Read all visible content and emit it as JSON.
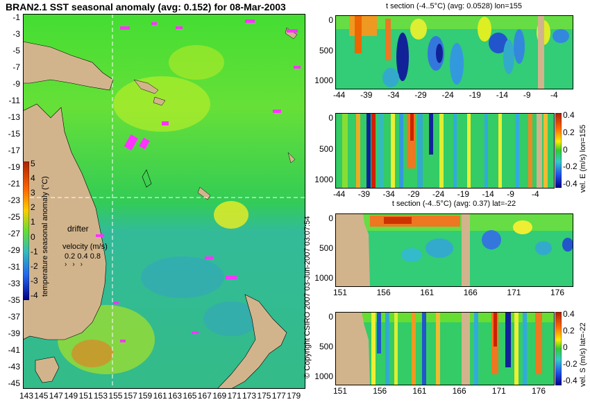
{
  "main_title": "BRAN2.1 SST seasonal anomaly (avg: 0.152) for 08-Mar-2003",
  "map": {
    "lat_labels": [
      "-1",
      "-3",
      "-5",
      "-7",
      "-9",
      "-11",
      "-13",
      "-15",
      "-17",
      "-19",
      "-21",
      "-23",
      "-25",
      "-27",
      "-29",
      "-31",
      "-33",
      "-35",
      "-37",
      "-39",
      "-41",
      "-43",
      "-45"
    ],
    "lon_labels": [
      "143",
      "145",
      "147",
      "149",
      "151",
      "153",
      "155",
      "157",
      "159",
      "161",
      "163",
      "165",
      "167",
      "169",
      "171",
      "173",
      "175",
      "177",
      "179"
    ],
    "colorbar_ticks": [
      "5",
      "4",
      "3",
      "2",
      "1",
      "0",
      "-1",
      "-2",
      "-3",
      "-4"
    ],
    "colorbar_label": "temperature seasonal anomaly (°C)",
    "drifter_label": "drifter",
    "velocity_label": "velocity (m/s)",
    "velocity_scale": "0.2 0.4 0.8",
    "section_lon": 155,
    "section_lat": -22
  },
  "copyright": "© Copyright CSIRO 2007 03-Jun-2007 03:07:54",
  "panels": {
    "t_lon": {
      "title": "t section (-4..5°C) (avg: 0.0528) lon=155",
      "y_ticks": [
        "0",
        "500",
        "1000"
      ],
      "x_ticks": [
        "-44",
        "-39",
        "-34",
        "-29",
        "-24",
        "-19",
        "-14",
        "-9",
        "-4"
      ]
    },
    "u_lon": {
      "side_label": "vel. E (m/s) lon=155",
      "y_ticks": [
        "0",
        "500",
        "1000"
      ],
      "x_ticks": [
        "-44",
        "-39",
        "-34",
        "-29",
        "-24",
        "-19",
        "-14",
        "-9",
        "-4"
      ],
      "cbar_ticks": [
        "0.4",
        "0.2",
        "0",
        "-0.2",
        "-0.4"
      ]
    },
    "t_lat": {
      "title": "t section (-4..5°C) (avg: 0.37) lat=-22",
      "y_ticks": [
        "0",
        "500",
        "1000"
      ],
      "x_ticks": [
        "151",
        "156",
        "161",
        "166",
        "171",
        "176"
      ]
    },
    "v_lat": {
      "side_label": "vel. S (m/s) lat=-22",
      "y_ticks": [
        "0",
        "500",
        "1000"
      ],
      "x_ticks": [
        "151",
        "156",
        "161",
        "166",
        "171",
        "176"
      ],
      "cbar_ticks": [
        "0.4",
        "0.2",
        "0",
        "-0.2",
        "-0.4"
      ]
    }
  },
  "colors": {
    "land": "#d2b48c",
    "ocean_warm": "#33dd33",
    "ocean_cool": "#33bbaa",
    "drifter": "#ff33ff"
  }
}
